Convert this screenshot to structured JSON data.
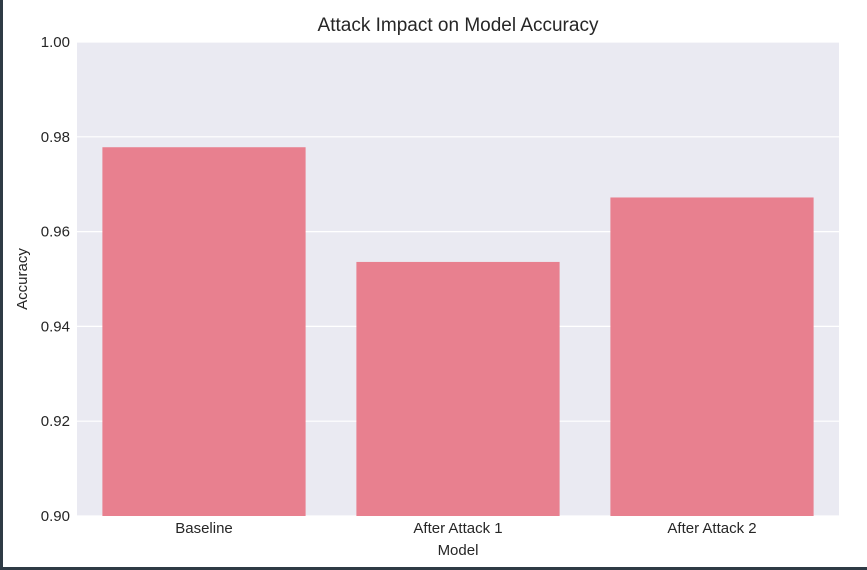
{
  "colors": {
    "bar": "#E8808F",
    "plot_background": "#EAEAF2",
    "grid": "#FFFFFF",
    "text": "#262626",
    "frame": "#2F3B45"
  },
  "chart_data": {
    "type": "bar",
    "title": "Attack Impact on Model Accuracy",
    "xlabel": "Model",
    "ylabel": "Accuracy",
    "categories": [
      "Baseline",
      "After Attack 1",
      "After Attack 2"
    ],
    "values": [
      0.9778,
      0.9536,
      0.9672
    ],
    "ylim": [
      0.9,
      1.0
    ],
    "yticks": [
      "0.90",
      "0.92",
      "0.94",
      "0.96",
      "0.98",
      "1.00"
    ],
    "grid": "horizontal",
    "legend": "none"
  }
}
